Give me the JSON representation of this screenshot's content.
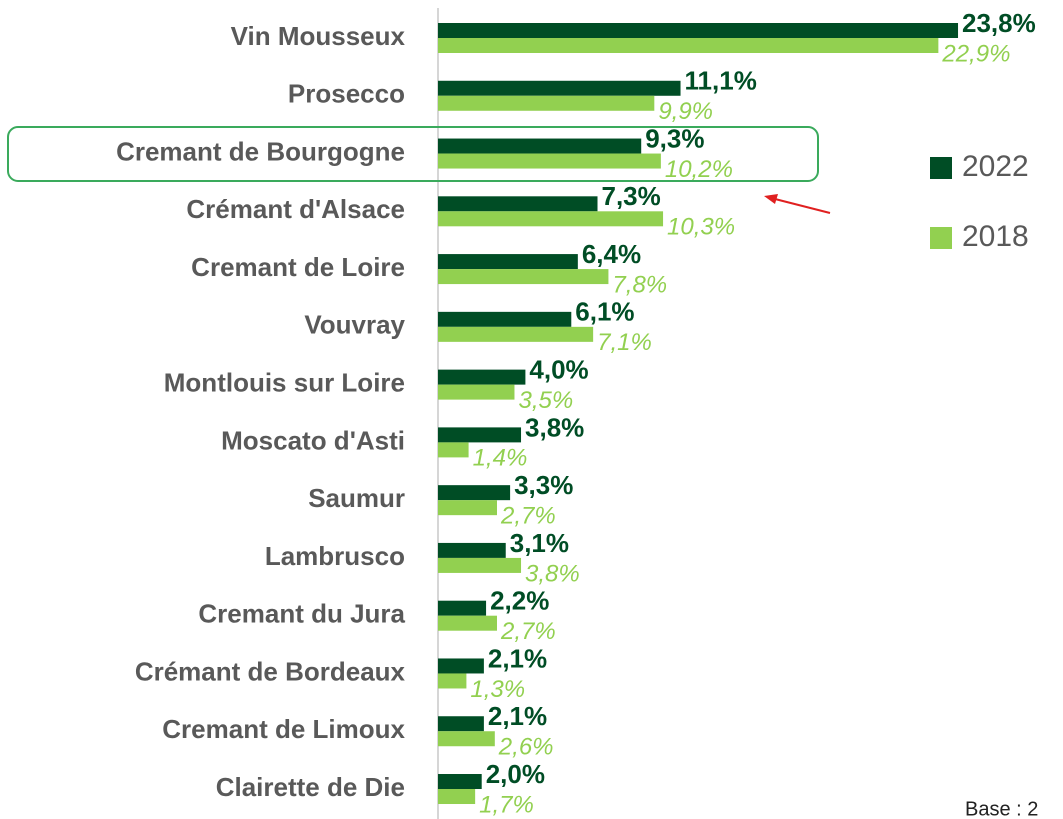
{
  "chart_data": {
    "type": "bar",
    "orientation": "horizontal",
    "categories": [
      "Vin Mousseux",
      "Prosecco",
      "Cremant de Bourgogne",
      "Crémant d'Alsace",
      "Cremant de Loire",
      "Vouvray",
      "Montlouis sur Loire",
      "Moscato d'Asti",
      "Saumur",
      "Lambrusco",
      "Cremant du Jura",
      "Crémant de Bordeaux",
      "Cremant de Limoux",
      "Clairette de Die"
    ],
    "series": [
      {
        "name": "2022",
        "color": "#004d25",
        "values": [
          23.8,
          11.1,
          9.3,
          7.3,
          6.4,
          6.1,
          4.0,
          3.8,
          3.3,
          3.1,
          2.2,
          2.1,
          2.1,
          2.0
        ],
        "value_labels": [
          "23,8%",
          "11,1%",
          "9,3%",
          "7,3%",
          "6,4%",
          "6,1%",
          "4,0%",
          "3,8%",
          "3,3%",
          "3,1%",
          "2,2%",
          "2,1%",
          "2,1%",
          "2,0%"
        ]
      },
      {
        "name": "2018",
        "color": "#92d050",
        "values": [
          22.9,
          9.9,
          10.2,
          10.3,
          7.8,
          7.1,
          3.5,
          1.4,
          2.7,
          3.8,
          2.7,
          1.3,
          2.6,
          1.7
        ],
        "value_labels": [
          "22,9%",
          "9,9%",
          "10,2%",
          "10,3%",
          "7,8%",
          "7,1%",
          "3,5%",
          "1,4%",
          "2,7%",
          "3,8%",
          "2,7%",
          "1,3%",
          "2,6%",
          "1,7%"
        ]
      }
    ],
    "legend": "right",
    "footnote": "Base : 2"
  }
}
